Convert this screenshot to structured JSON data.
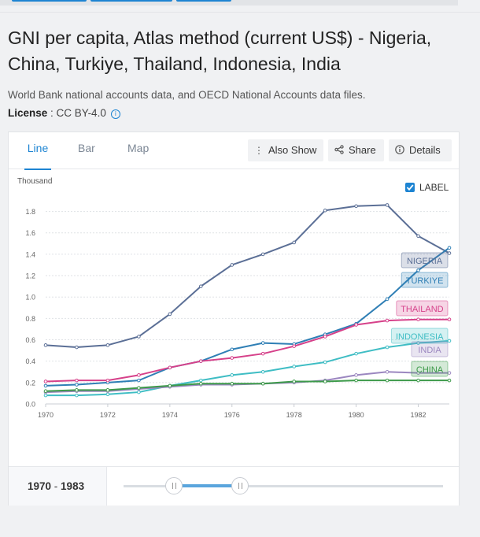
{
  "page": {
    "title": "GNI per capita, Atlas method (current US$) - Nigeria, China, Turkiye, Thailand, Indonesia, India",
    "source": "World Bank national accounts data, and OECD National Accounts data files.",
    "license_label": "License",
    "license_sep": " : ",
    "license_value": "CC BY-4.0",
    "info_icon": "i"
  },
  "tabs": [
    {
      "label": "Line",
      "active": true
    },
    {
      "label": "Bar",
      "active": false
    },
    {
      "label": "Map",
      "active": false
    }
  ],
  "actions": {
    "also_show": "Also Show",
    "share": "Share",
    "details": "Details"
  },
  "label_toggle": {
    "text": "LABEL",
    "checked": true
  },
  "range": {
    "from": "1970",
    "sep": " - ",
    "to": "1983"
  },
  "colors": {
    "accent": "#1d84d2",
    "Nigeria": "#5b6f96",
    "Turkiye": "#2f7fb5",
    "Thailand": "#d6418a",
    "Indonesia": "#3fbdc4",
    "India": "#9b87c0",
    "China": "#3d9a4a"
  },
  "chart_data": {
    "type": "line",
    "unit_label": "Thousand",
    "x": [
      1970,
      1971,
      1972,
      1973,
      1974,
      1975,
      1976,
      1977,
      1978,
      1979,
      1980,
      1981,
      1982,
      1983
    ],
    "x_ticks": [
      "1970",
      "1972",
      "1974",
      "1976",
      "1978",
      "1980",
      "1982"
    ],
    "y_ticks": [
      "0.0",
      "0.2",
      "0.4",
      "0.6",
      "0.8",
      "1.0",
      "1.2",
      "1.4",
      "1.6",
      "1.8"
    ],
    "ylim": [
      0,
      1.9
    ],
    "grid": true,
    "series": [
      {
        "name": "NIGERIA",
        "key": "Nigeria",
        "values": [
          0.55,
          0.53,
          0.55,
          0.63,
          0.84,
          1.1,
          1.3,
          1.4,
          1.51,
          1.81,
          1.85,
          1.86,
          1.57,
          1.41
        ]
      },
      {
        "name": "TURKIYE",
        "key": "Turkiye",
        "values": [
          0.17,
          0.18,
          0.2,
          0.22,
          0.34,
          0.4,
          0.51,
          0.57,
          0.56,
          0.65,
          0.75,
          0.98,
          1.25,
          1.46
        ]
      },
      {
        "name": "THAILAND",
        "key": "Thailand",
        "values": [
          0.21,
          0.22,
          0.22,
          0.27,
          0.34,
          0.4,
          0.43,
          0.47,
          0.54,
          0.63,
          0.74,
          0.78,
          0.79,
          0.79
        ]
      },
      {
        "name": "INDONESIA",
        "key": "Indonesia",
        "values": [
          0.08,
          0.08,
          0.09,
          0.11,
          0.17,
          0.22,
          0.27,
          0.3,
          0.35,
          0.39,
          0.47,
          0.53,
          0.57,
          0.59
        ]
      },
      {
        "name": "INDIA",
        "key": "India",
        "values": [
          0.11,
          0.12,
          0.12,
          0.14,
          0.16,
          0.18,
          0.18,
          0.19,
          0.2,
          0.22,
          0.27,
          0.3,
          0.29,
          0.29
        ]
      },
      {
        "name": "CHINA",
        "key": "China",
        "values": [
          0.12,
          0.13,
          0.13,
          0.15,
          0.17,
          0.19,
          0.19,
          0.19,
          0.21,
          0.21,
          0.22,
          0.22,
          0.22,
          0.22
        ]
      }
    ]
  }
}
